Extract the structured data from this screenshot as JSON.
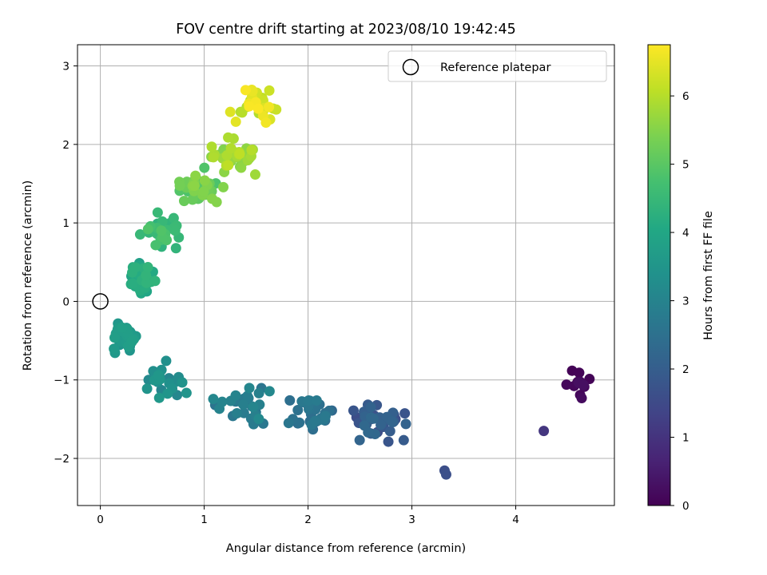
{
  "chart_data": {
    "type": "scatter",
    "title": "FOV centre drift starting at 2023/08/10 19:42:45",
    "xlabel": "Angular distance from reference (arcmin)",
    "ylabel": "Rotation from reference (arcmin)",
    "xlim": [
      -0.22,
      4.95
    ],
    "ylim": [
      -2.6,
      3.27
    ],
    "xticks": [
      0,
      1,
      2,
      3,
      4
    ],
    "yticks": [
      -2,
      -1,
      0,
      1,
      2,
      3
    ],
    "xtick_labels": [
      "0",
      "1",
      "2",
      "3",
      "4"
    ],
    "ytick_labels": [
      "−2",
      "−1",
      "0",
      "1",
      "2",
      "3"
    ],
    "grid": true,
    "colormap": "viridis",
    "colorbar": {
      "label": "Hours from first FF file",
      "range": [
        0,
        6.75
      ],
      "ticks": [
        0,
        1,
        2,
        3,
        4,
        5,
        6
      ],
      "tick_labels": [
        "0",
        "1",
        "2",
        "3",
        "4",
        "5",
        "6"
      ]
    },
    "legend": {
      "position": "top-right",
      "entries": [
        {
          "label": "Reference platepar",
          "marker": "open-circle"
        }
      ]
    },
    "reference_point": {
      "x": 0,
      "y": 0
    },
    "series": [
      {
        "clusters": [
          {
            "x": 4.6,
            "y": -1.05,
            "x_spread": 0.18,
            "y_spread": 0.25,
            "count": 12,
            "hour_range": [
              0.0,
              0.3
            ]
          },
          {
            "x": 4.27,
            "y": -1.65,
            "x_spread": 0.0,
            "y_spread": 0.0,
            "count": 1,
            "hour_range": [
              1.05,
              1.05
            ]
          },
          {
            "x": 2.7,
            "y": -1.55,
            "x_spread": 0.35,
            "y_spread": 0.35,
            "count": 40,
            "hour_range": [
              1.5,
              2.3
            ]
          },
          {
            "x": 3.33,
            "y": -2.2,
            "x_spread": 0.02,
            "y_spread": 0.1,
            "count": 2,
            "hour_range": [
              1.6,
              1.7
            ]
          },
          {
            "x": 2.05,
            "y": -1.45,
            "x_spread": 0.35,
            "y_spread": 0.3,
            "count": 35,
            "hour_range": [
              2.2,
              2.8
            ]
          },
          {
            "x": 1.4,
            "y": -1.3,
            "x_spread": 0.35,
            "y_spread": 0.35,
            "count": 30,
            "hour_range": [
              2.6,
              3.2
            ]
          },
          {
            "x": 0.6,
            "y": -1.0,
            "x_spread": 0.3,
            "y_spread": 0.3,
            "count": 22,
            "hour_range": [
              3.0,
              3.6
            ]
          },
          {
            "x": 0.25,
            "y": -0.45,
            "x_spread": 0.2,
            "y_spread": 0.25,
            "count": 35,
            "hour_range": [
              3.4,
              3.8
            ]
          },
          {
            "x": 0.4,
            "y": 0.3,
            "x_spread": 0.2,
            "y_spread": 0.35,
            "count": 30,
            "hour_range": [
              3.8,
              4.4
            ]
          },
          {
            "x": 0.6,
            "y": 0.9,
            "x_spread": 0.25,
            "y_spread": 0.3,
            "count": 28,
            "hour_range": [
              4.3,
              4.9
            ]
          },
          {
            "x": 0.95,
            "y": 1.45,
            "x_spread": 0.3,
            "y_spread": 0.3,
            "count": 40,
            "hour_range": [
              4.8,
              5.6
            ]
          },
          {
            "x": 1.25,
            "y": 1.9,
            "x_spread": 0.35,
            "y_spread": 0.35,
            "count": 35,
            "hour_range": [
              5.4,
              6.1
            ]
          },
          {
            "x": 1.45,
            "y": 2.5,
            "x_spread": 0.35,
            "y_spread": 0.35,
            "count": 30,
            "hour_range": [
              5.9,
              6.75
            ]
          }
        ]
      }
    ]
  }
}
